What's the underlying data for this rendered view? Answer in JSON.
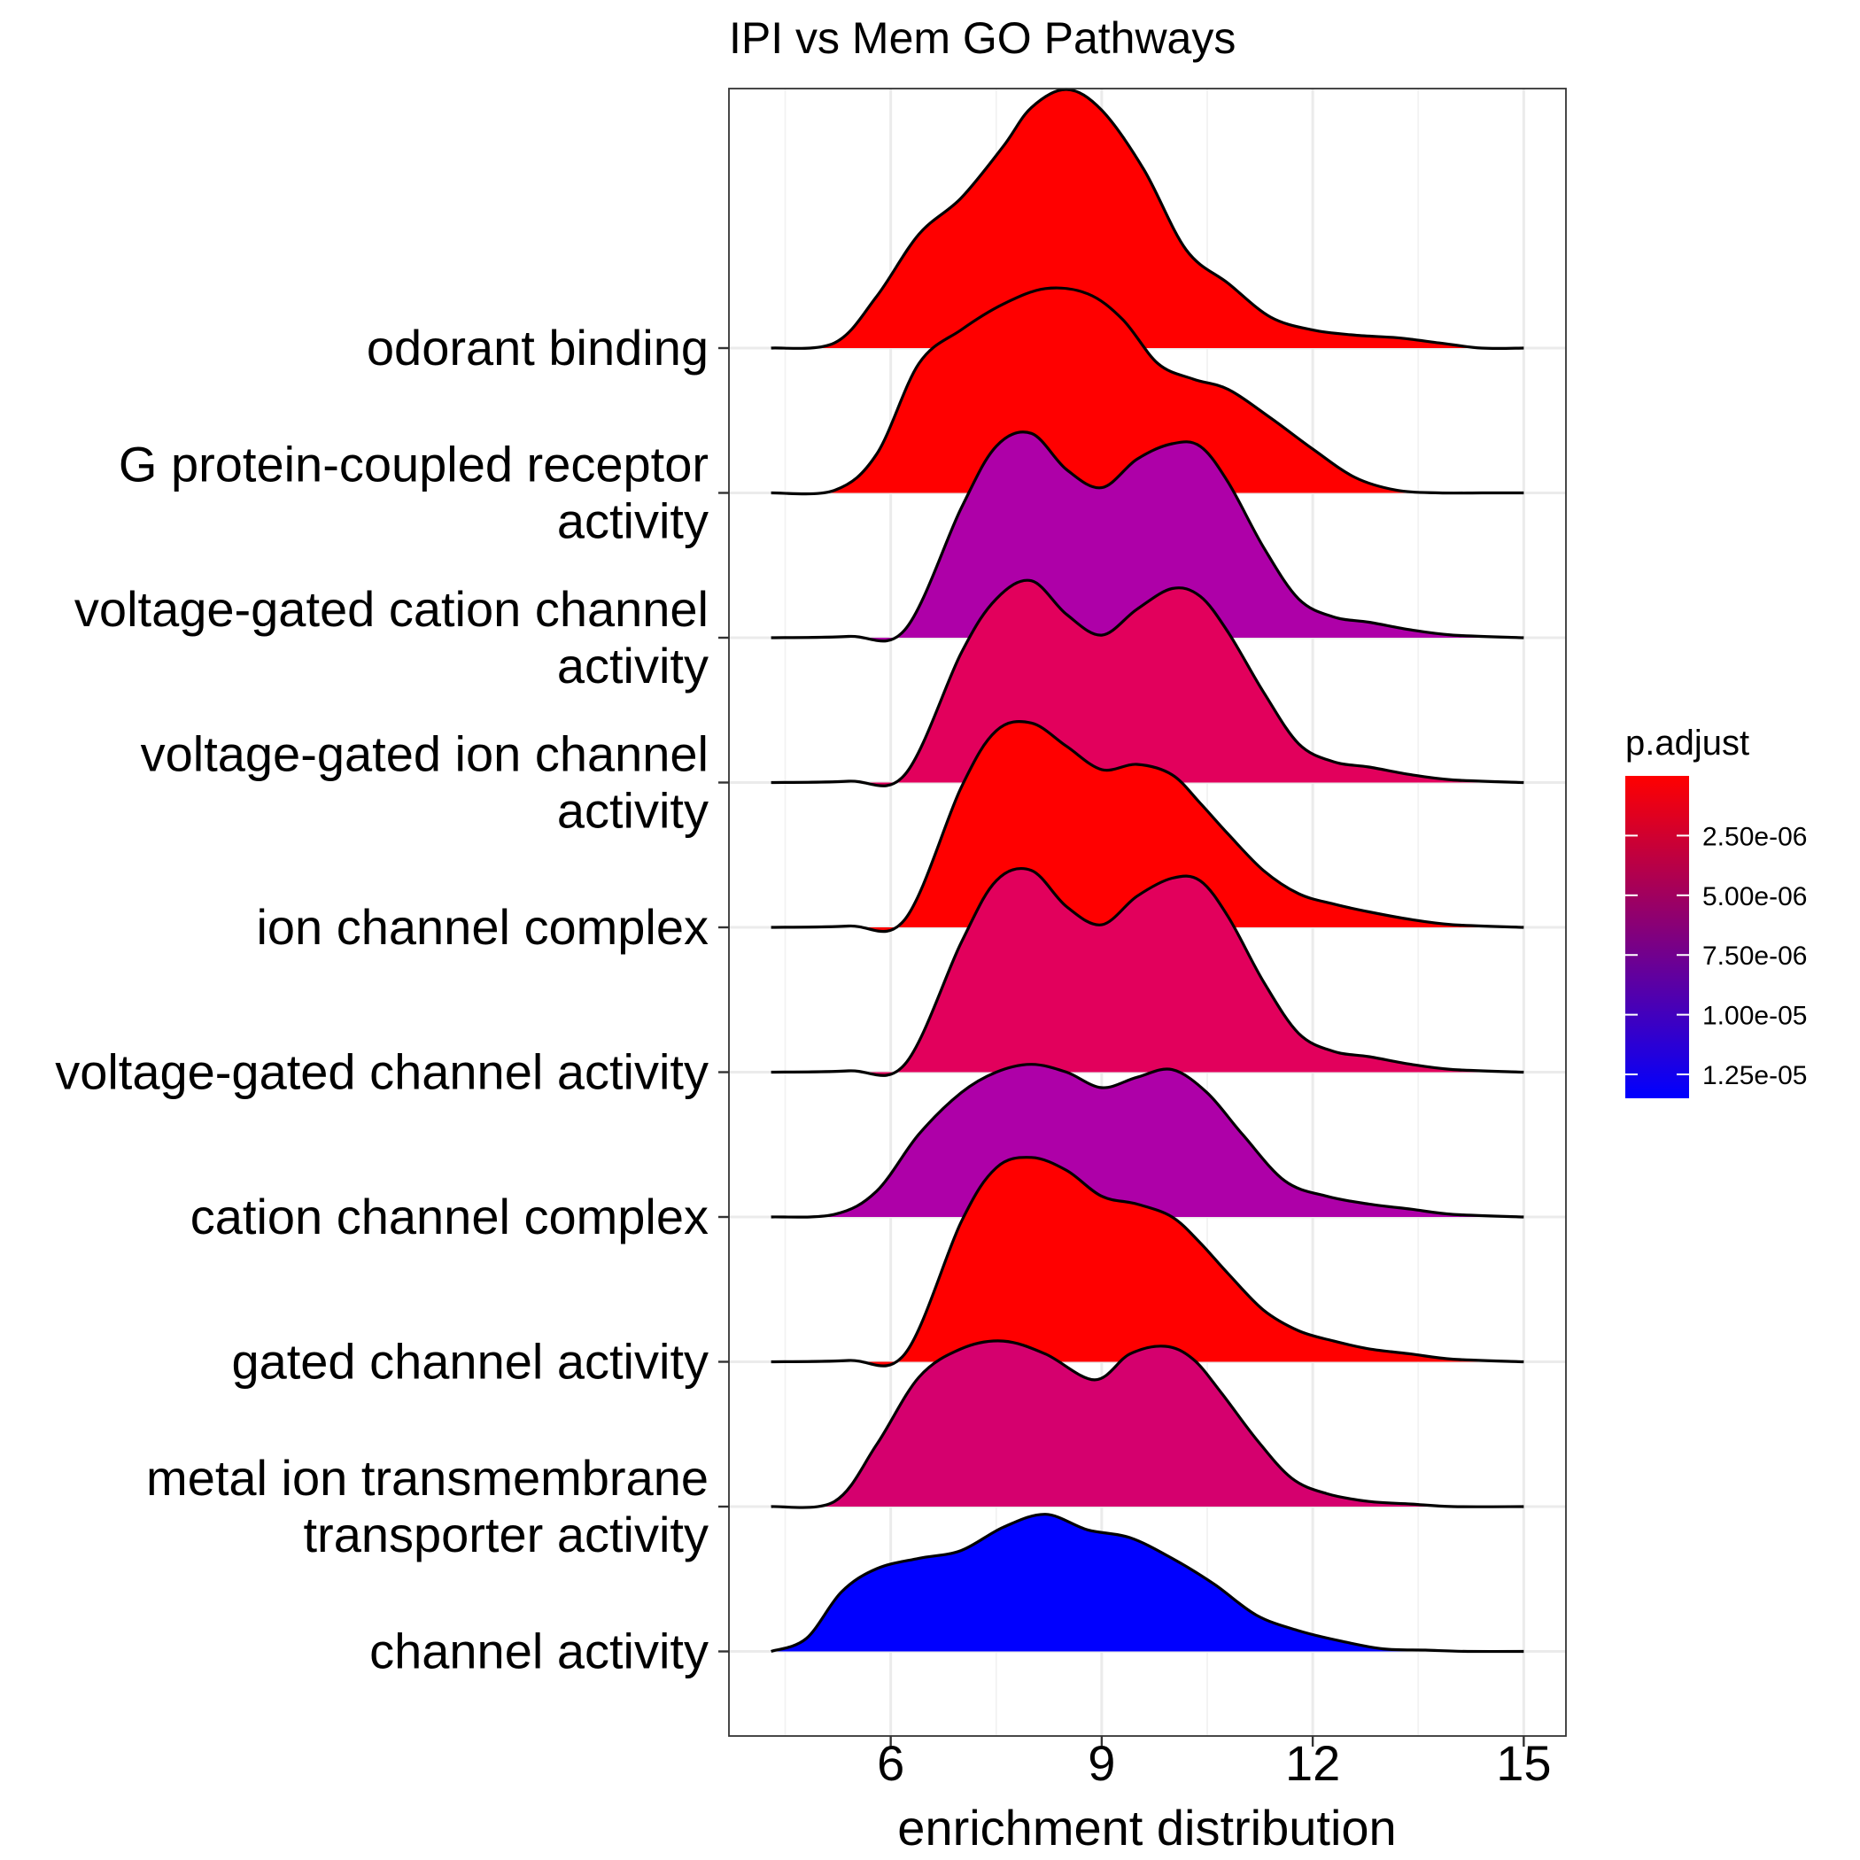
{
  "chart_data": {
    "type": "ridgeline",
    "title": "IPI vs Mem GO Pathways",
    "xlabel": "enrichment distribution",
    "ylabel": "",
    "xlim": [
      3.7,
      15.6
    ],
    "xticks": [
      6,
      9,
      12,
      15
    ],
    "grid": true,
    "legend": {
      "title": "p.adjust",
      "placement": "right",
      "scale_min": 0,
      "scale_max": 1.35e-05,
      "color_low": "#ff0000",
      "color_high": "#0000ff",
      "ticks": [
        {
          "value": 2.5e-06,
          "label": "2.50e-06"
        },
        {
          "value": 5e-06,
          "label": "5.00e-06"
        },
        {
          "value": 7.5e-06,
          "label": "7.50e-06"
        },
        {
          "value": 1e-05,
          "label": "1.00e-05"
        },
        {
          "value": 1.25e-05,
          "label": "1.25e-05"
        }
      ]
    },
    "series": [
      {
        "name": "odorant binding",
        "label_lines": [
          "odorant binding"
        ],
        "color": "#ff0000",
        "x": [
          4.3,
          5.2,
          5.8,
          6.4,
          7.0,
          7.6,
          8.0,
          8.5,
          9.0,
          9.6,
          10.2,
          10.8,
          11.4,
          12.0,
          12.6,
          13.2,
          13.8,
          14.4,
          15.0
        ],
        "density": [
          0.0,
          0.02,
          0.2,
          0.44,
          0.58,
          0.78,
          0.93,
          1.0,
          0.92,
          0.69,
          0.38,
          0.25,
          0.12,
          0.07,
          0.05,
          0.04,
          0.02,
          0.0,
          0.0
        ]
      },
      {
        "name": "G protein-coupled receptor activity",
        "label_lines": [
          "G protein-coupled receptor",
          "activity"
        ],
        "color": "#ff0000",
        "x": [
          4.3,
          5.2,
          5.8,
          6.4,
          7.0,
          7.6,
          8.2,
          8.8,
          9.3,
          9.8,
          10.3,
          10.8,
          11.4,
          12.0,
          12.6,
          13.2,
          13.8,
          14.4,
          15.0
        ],
        "density": [
          0.0,
          0.01,
          0.15,
          0.5,
          0.63,
          0.73,
          0.79,
          0.77,
          0.67,
          0.5,
          0.44,
          0.4,
          0.29,
          0.17,
          0.06,
          0.01,
          0.0,
          0.0,
          0.0
        ]
      },
      {
        "name": "voltage-gated cation channel activity",
        "label_lines": [
          "voltage-gated cation channel",
          "activity"
        ],
        "color": "#ae00a8",
        "x": [
          4.3,
          5.4,
          6.2,
          7.0,
          7.5,
          8.0,
          8.5,
          9.0,
          9.5,
          10.0,
          10.4,
          10.8,
          11.3,
          11.8,
          12.3,
          12.8,
          13.4,
          14.0,
          15.0
        ],
        "density": [
          0.0,
          0.005,
          0.03,
          0.5,
          0.74,
          0.79,
          0.65,
          0.58,
          0.69,
          0.75,
          0.74,
          0.6,
          0.35,
          0.15,
          0.08,
          0.06,
          0.03,
          0.01,
          0.0
        ]
      },
      {
        "name": "voltage-gated ion channel activity",
        "label_lines": [
          "voltage-gated ion channel",
          "activity"
        ],
        "color": "#e2005c",
        "x": [
          4.3,
          5.4,
          6.2,
          7.0,
          7.5,
          8.0,
          8.5,
          9.0,
          9.5,
          10.0,
          10.4,
          10.8,
          11.3,
          11.8,
          12.3,
          12.8,
          13.4,
          14.0,
          15.0
        ],
        "density": [
          0.0,
          0.005,
          0.03,
          0.5,
          0.71,
          0.78,
          0.65,
          0.57,
          0.67,
          0.75,
          0.72,
          0.58,
          0.35,
          0.15,
          0.08,
          0.06,
          0.03,
          0.01,
          0.0
        ]
      },
      {
        "name": "ion channel complex",
        "label_lines": [
          "ion channel complex"
        ],
        "color": "#ff0000",
        "x": [
          4.3,
          5.4,
          6.2,
          7.0,
          7.5,
          8.0,
          8.5,
          9.0,
          9.5,
          10.0,
          10.4,
          10.8,
          11.3,
          11.8,
          12.3,
          12.8,
          13.4,
          14.0,
          15.0
        ],
        "density": [
          0.0,
          0.005,
          0.03,
          0.54,
          0.76,
          0.79,
          0.7,
          0.61,
          0.63,
          0.59,
          0.48,
          0.36,
          0.22,
          0.13,
          0.09,
          0.06,
          0.03,
          0.01,
          0.0
        ]
      },
      {
        "name": "voltage-gated channel activity",
        "label_lines": [
          "voltage-gated channel activity"
        ],
        "color": "#e2005c",
        "x": [
          4.3,
          5.4,
          6.2,
          7.0,
          7.5,
          8.0,
          8.5,
          9.0,
          9.5,
          10.0,
          10.4,
          10.8,
          11.3,
          11.8,
          12.3,
          12.8,
          13.4,
          14.0,
          15.0
        ],
        "density": [
          0.0,
          0.005,
          0.03,
          0.5,
          0.74,
          0.78,
          0.64,
          0.57,
          0.68,
          0.75,
          0.74,
          0.6,
          0.35,
          0.15,
          0.08,
          0.06,
          0.03,
          0.01,
          0.0
        ]
      },
      {
        "name": "cation channel complex",
        "label_lines": [
          "cation channel complex"
        ],
        "color": "#ae00a8",
        "x": [
          4.3,
          5.2,
          5.8,
          6.4,
          7.0,
          7.5,
          8.0,
          8.5,
          9.0,
          9.5,
          10.0,
          10.5,
          11.0,
          11.6,
          12.2,
          12.8,
          13.4,
          14.0,
          15.0
        ],
        "density": [
          0.0,
          0.01,
          0.1,
          0.32,
          0.48,
          0.56,
          0.59,
          0.56,
          0.5,
          0.54,
          0.57,
          0.48,
          0.32,
          0.14,
          0.08,
          0.05,
          0.03,
          0.01,
          0.0
        ]
      },
      {
        "name": "gated channel activity",
        "label_lines": [
          "gated channel activity"
        ],
        "color": "#ff0000",
        "x": [
          4.3,
          5.4,
          6.2,
          7.0,
          7.5,
          8.0,
          8.5,
          9.0,
          9.5,
          10.0,
          10.4,
          10.8,
          11.3,
          11.8,
          12.3,
          12.8,
          13.4,
          14.0,
          15.0
        ],
        "density": [
          0.0,
          0.005,
          0.03,
          0.54,
          0.75,
          0.79,
          0.74,
          0.64,
          0.61,
          0.56,
          0.46,
          0.34,
          0.2,
          0.12,
          0.08,
          0.05,
          0.03,
          0.01,
          0.0
        ]
      },
      {
        "name": "metal ion transmembrane transporter activity",
        "label_lines": [
          "metal ion transmembrane",
          "transporter activity"
        ],
        "color": "#d5006e",
        "x": [
          4.3,
          5.2,
          5.8,
          6.4,
          7.0,
          7.6,
          8.2,
          8.9,
          9.4,
          9.9,
          10.3,
          10.7,
          11.2,
          11.7,
          12.2,
          12.8,
          13.4,
          14.0,
          15.0
        ],
        "density": [
          0.0,
          0.02,
          0.24,
          0.5,
          0.61,
          0.64,
          0.59,
          0.49,
          0.59,
          0.62,
          0.57,
          0.44,
          0.26,
          0.11,
          0.05,
          0.02,
          0.01,
          0.0,
          0.0
        ]
      },
      {
        "name": "channel activity",
        "label_lines": [
          "channel activity"
        ],
        "color": "#0000ff",
        "x": [
          4.3,
          4.8,
          5.3,
          5.8,
          6.4,
          7.0,
          7.6,
          8.2,
          8.8,
          9.4,
          10.0,
          10.6,
          11.2,
          11.8,
          12.4,
          13.0,
          13.6,
          14.2,
          15.0
        ],
        "density": [
          0.0,
          0.05,
          0.23,
          0.32,
          0.36,
          0.39,
          0.48,
          0.53,
          0.47,
          0.44,
          0.36,
          0.26,
          0.14,
          0.08,
          0.04,
          0.01,
          0.005,
          0.0,
          0.0
        ]
      }
    ]
  }
}
